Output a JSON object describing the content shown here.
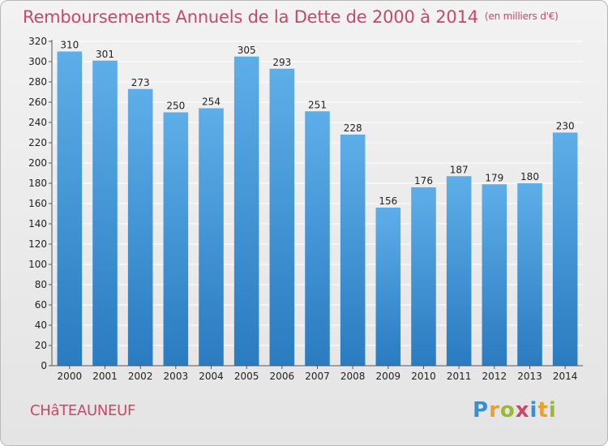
{
  "header": {
    "title": "Remboursements Annuels de la Dette de 2000 à 2014",
    "unit": "(en milliers d'€)"
  },
  "footer": {
    "commune": "CHâTEAUNEUF",
    "logo_letters": [
      {
        "char": "P",
        "color": "#3a8fd0"
      },
      {
        "char": "r",
        "color": "#e8a030"
      },
      {
        "char": "o",
        "color": "#9ab833"
      },
      {
        "char": "x",
        "color": "#c8486a"
      },
      {
        "char": "i",
        "color": "#3a8fd0"
      },
      {
        "char": "t",
        "color": "#e8a030"
      },
      {
        "char": "i",
        "color": "#9ab833"
      }
    ]
  },
  "colors": {
    "bar_top": "#5daee8",
    "bar_bottom": "#2a7bc0",
    "grid": "#ffffff",
    "axis": "#555555",
    "text": "#222222"
  },
  "chart_data": {
    "type": "bar",
    "title": "Remboursements Annuels de la Dette de 2000 à 2014",
    "xlabel": "",
    "ylabel": "",
    "categories": [
      "2000",
      "2001",
      "2002",
      "2003",
      "2004",
      "2005",
      "2006",
      "2007",
      "2008",
      "2009",
      "2010",
      "2011",
      "2012",
      "2013",
      "2014"
    ],
    "values": [
      310,
      301,
      273,
      250,
      254,
      305,
      293,
      251,
      228,
      156,
      176,
      187,
      179,
      180,
      230
    ],
    "ylim": [
      0,
      320
    ],
    "ytick_step": 20,
    "grid": true,
    "data_labels": true
  }
}
